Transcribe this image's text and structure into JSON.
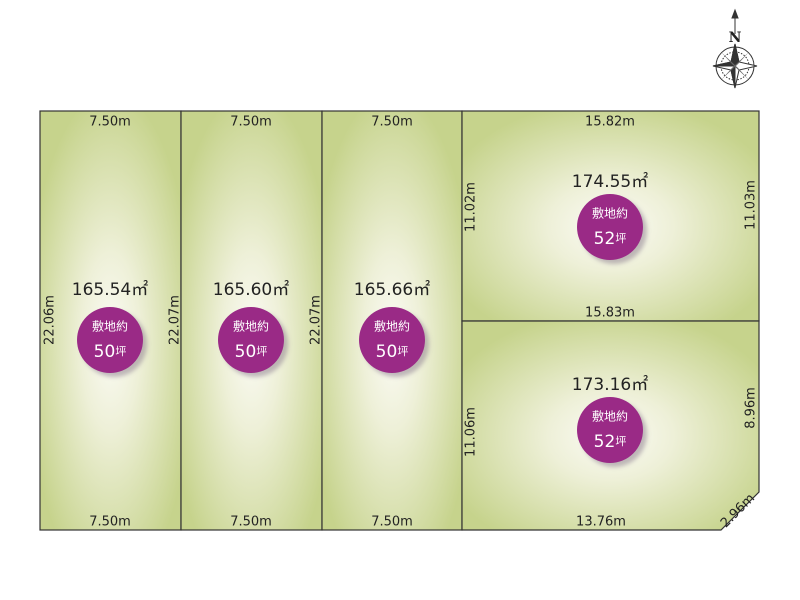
{
  "compass": "N",
  "lots": [
    {
      "area": "165.54㎡",
      "label": "敷地約",
      "tsubo": "50",
      "unit": "坪",
      "top": "7.50m",
      "bottom": "7.50m",
      "left": "22.06m"
    },
    {
      "area": "165.60㎡",
      "label": "敷地約",
      "tsubo": "50",
      "unit": "坪",
      "top": "7.50m",
      "bottom": "7.50m",
      "left": "22.07m"
    },
    {
      "area": "165.66㎡",
      "label": "敷地約",
      "tsubo": "50",
      "unit": "坪",
      "top": "7.50m",
      "bottom": "7.50m",
      "left": "22.07m"
    },
    {
      "area": "174.55㎡",
      "label": "敷地約",
      "tsubo": "52",
      "unit": "坪",
      "top": "15.82m",
      "bottom": "15.83m",
      "left": "11.02m",
      "right": "11.03m"
    },
    {
      "area": "173.16㎡",
      "label": "敷地約",
      "tsubo": "52",
      "unit": "坪",
      "bottom": "13.76m",
      "left": "11.06m",
      "right": "8.96m",
      "corner": "2.96m"
    }
  ]
}
